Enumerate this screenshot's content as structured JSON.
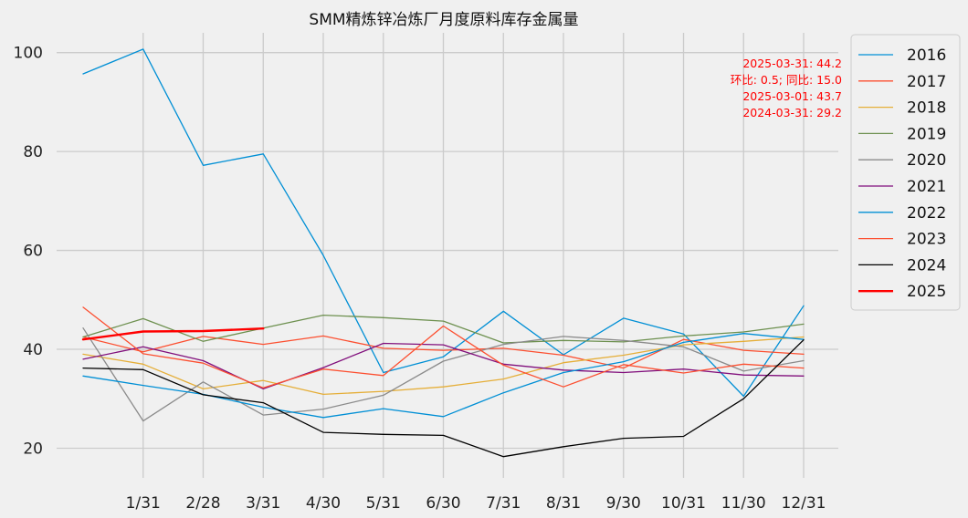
{
  "chart_data": {
    "type": "line",
    "title": "SMM精炼锌冶炼厂月度原料库存金属量",
    "xlabel": "",
    "ylabel": "",
    "ylim": [
      14,
      104
    ],
    "yticks": [
      20,
      40,
      60,
      80,
      100
    ],
    "x_labels": [
      "",
      "1/31",
      "2/28",
      "3/31",
      "4/30",
      "5/31",
      "6/30",
      "7/31",
      "8/31",
      "9/30",
      "10/31",
      "11/30",
      "12/31"
    ],
    "grid": true,
    "legend_position": "outside-top-right",
    "annotation": [
      "2025-03-31: 44.2",
      "环比: 0.5; 同比: 15.0",
      "2025-03-01: 43.7",
      "2024-03-31: 29.2"
    ],
    "series": [
      {
        "name": "2016",
        "color": "#008fd5",
        "width": 1.3,
        "values": [
          95.7,
          100.7,
          77.2,
          79.5,
          59.0,
          35.3,
          38.5,
          47.7,
          38.9,
          46.3,
          43.1,
          30.5,
          48.8
        ]
      },
      {
        "name": "2017",
        "color": "#fc4f30",
        "width": 1.3,
        "values": [
          42.5,
          39.5,
          42.6,
          41.0,
          42.7,
          40.2,
          39.8,
          40.2,
          38.8,
          36.2,
          42.0,
          39.8,
          39.0
        ]
      },
      {
        "name": "2018",
        "color": "#e5ae38",
        "width": 1.3,
        "values": [
          39.0,
          37.0,
          32.0,
          33.7,
          30.9,
          31.5,
          32.4,
          34.0,
          37.3,
          38.8,
          40.9,
          41.6,
          42.5
        ]
      },
      {
        "name": "2019",
        "color": "#6d904f",
        "width": 1.3,
        "values": [
          42.5,
          46.2,
          41.6,
          44.3,
          46.9,
          46.4,
          45.7,
          41.3,
          41.8,
          41.5,
          42.7,
          43.5,
          45.1
        ]
      },
      {
        "name": "2020",
        "color": "#8b8b8b",
        "width": 1.3,
        "values": [
          44.3,
          25.5,
          33.4,
          26.7,
          27.9,
          30.7,
          37.6,
          41.0,
          42.6,
          41.8,
          40.5,
          35.6,
          37.7
        ]
      },
      {
        "name": "2021",
        "color": "#810f7c",
        "width": 1.3,
        "values": [
          38.0,
          40.5,
          37.7,
          32.0,
          36.3,
          41.2,
          40.9,
          37.0,
          35.8,
          35.3,
          36.0,
          34.8,
          34.6
        ]
      },
      {
        "name": "2022",
        "color": "#008fd5",
        "width": 1.3,
        "values": [
          34.6,
          32.7,
          30.9,
          28.3,
          26.2,
          28.0,
          26.4,
          31.2,
          35.3,
          37.5,
          41.4,
          43.2,
          42.0
        ]
      },
      {
        "name": "2023",
        "color": "#fc4f30",
        "width": 1.3,
        "values": [
          48.5,
          39.1,
          37.2,
          32.2,
          36.0,
          34.7,
          44.7,
          36.8,
          32.4,
          36.9,
          35.2,
          37.0,
          36.2
        ]
      },
      {
        "name": "2024",
        "color": "#000000",
        "width": 1.3,
        "values": [
          36.2,
          35.9,
          30.8,
          29.2,
          23.2,
          22.8,
          22.6,
          18.3,
          20.3,
          22.0,
          22.4,
          30.0,
          41.9
        ]
      },
      {
        "name": "2025",
        "color": "#ff0000",
        "width": 2.4,
        "values": [
          42.0,
          43.6,
          43.7,
          44.2
        ]
      }
    ]
  }
}
